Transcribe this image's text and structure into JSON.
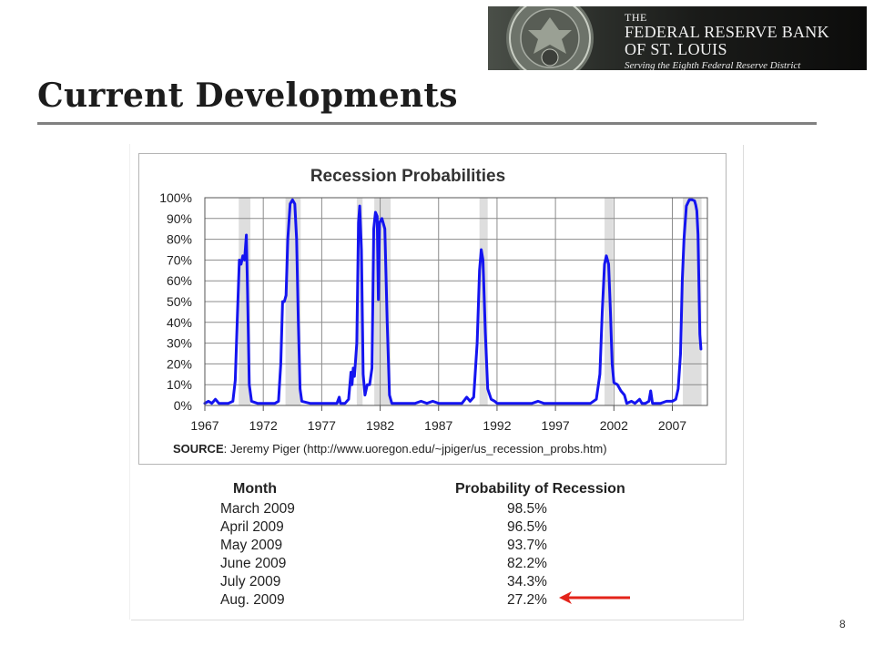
{
  "header": {
    "logo": {
      "line1": "THE",
      "line2": "FEDERAL RESERVE BANK",
      "line3": "OF ST. LOUIS",
      "tagline": "Serving the Eighth Federal Reserve District"
    },
    "page_title": "Current Developments"
  },
  "chart_data": {
    "type": "line",
    "title": "Recession Probabilities",
    "xlabel": "",
    "ylabel": "",
    "source_label": "SOURCE",
    "source_text": ": Jeremy Piger (http://www.uoregon.edu/~jpiger/us_recession_probs.htm)",
    "x_ticks": [
      "1967",
      "1972",
      "1977",
      "1982",
      "1987",
      "1992",
      "1997",
      "2002",
      "2007"
    ],
    "y_ticks": [
      "0%",
      "10%",
      "20%",
      "30%",
      "40%",
      "50%",
      "60%",
      "70%",
      "80%",
      "90%",
      "100%"
    ],
    "xlim": [
      1967,
      2010
    ],
    "ylim": [
      0,
      100
    ],
    "grid": true,
    "recession_shading": [
      [
        1969.9,
        1970.9
      ],
      [
        1973.9,
        1975.2
      ],
      [
        1980.0,
        1980.5
      ],
      [
        1981.5,
        1982.9
      ],
      [
        1990.5,
        1991.2
      ],
      [
        2001.2,
        2001.9
      ],
      [
        2007.9,
        2009.5
      ]
    ],
    "series": [
      {
        "color": "#1414f0",
        "points": [
          [
            1967.0,
            1
          ],
          [
            1967.3,
            2
          ],
          [
            1967.6,
            1
          ],
          [
            1967.9,
            3
          ],
          [
            1968.2,
            1
          ],
          [
            1968.6,
            1
          ],
          [
            1969.0,
            1
          ],
          [
            1969.4,
            2
          ],
          [
            1969.6,
            12
          ],
          [
            1969.8,
            45
          ],
          [
            1969.95,
            70
          ],
          [
            1970.1,
            68
          ],
          [
            1970.25,
            72
          ],
          [
            1970.4,
            70
          ],
          [
            1970.55,
            82
          ],
          [
            1970.65,
            55
          ],
          [
            1970.8,
            10
          ],
          [
            1971.0,
            2
          ],
          [
            1971.5,
            1
          ],
          [
            1972.0,
            1
          ],
          [
            1972.5,
            1
          ],
          [
            1973.0,
            1
          ],
          [
            1973.3,
            2
          ],
          [
            1973.5,
            20
          ],
          [
            1973.65,
            50
          ],
          [
            1973.8,
            50
          ],
          [
            1973.95,
            53
          ],
          [
            1974.1,
            80
          ],
          [
            1974.3,
            97
          ],
          [
            1974.5,
            99
          ],
          [
            1974.7,
            97
          ],
          [
            1974.85,
            80
          ],
          [
            1975.0,
            40
          ],
          [
            1975.15,
            8
          ],
          [
            1975.3,
            2
          ],
          [
            1976.0,
            1
          ],
          [
            1977.0,
            1
          ],
          [
            1978.0,
            1
          ],
          [
            1978.3,
            1
          ],
          [
            1978.5,
            4
          ],
          [
            1978.6,
            1
          ],
          [
            1979.0,
            1
          ],
          [
            1979.3,
            3
          ],
          [
            1979.5,
            16
          ],
          [
            1979.6,
            10
          ],
          [
            1979.7,
            18
          ],
          [
            1979.8,
            14
          ],
          [
            1980.0,
            30
          ],
          [
            1980.15,
            88
          ],
          [
            1980.25,
            96
          ],
          [
            1980.4,
            75
          ],
          [
            1980.55,
            15
          ],
          [
            1980.7,
            5
          ],
          [
            1980.9,
            10
          ],
          [
            1981.1,
            10
          ],
          [
            1981.3,
            18
          ],
          [
            1981.45,
            85
          ],
          [
            1981.6,
            93
          ],
          [
            1981.75,
            91
          ],
          [
            1981.85,
            51
          ],
          [
            1981.95,
            88
          ],
          [
            1982.15,
            90
          ],
          [
            1982.4,
            85
          ],
          [
            1982.6,
            40
          ],
          [
            1982.8,
            5
          ],
          [
            1983.0,
            1
          ],
          [
            1984.0,
            1
          ],
          [
            1985.0,
            1
          ],
          [
            1985.5,
            2
          ],
          [
            1986.0,
            1
          ],
          [
            1986.5,
            2
          ],
          [
            1987.0,
            1
          ],
          [
            1987.5,
            1
          ],
          [
            1988.0,
            1
          ],
          [
            1988.5,
            1
          ],
          [
            1989.0,
            1
          ],
          [
            1989.4,
            4
          ],
          [
            1989.7,
            2
          ],
          [
            1990.0,
            4
          ],
          [
            1990.3,
            30
          ],
          [
            1990.5,
            65
          ],
          [
            1990.65,
            75
          ],
          [
            1990.8,
            70
          ],
          [
            1991.0,
            35
          ],
          [
            1991.2,
            8
          ],
          [
            1991.5,
            3
          ],
          [
            1991.8,
            2
          ],
          [
            1992.0,
            1
          ],
          [
            1993.0,
            1
          ],
          [
            1994.0,
            1
          ],
          [
            1995.0,
            1
          ],
          [
            1995.5,
            2
          ],
          [
            1996.0,
            1
          ],
          [
            1997.0,
            1
          ],
          [
            1998.0,
            1
          ],
          [
            1999.0,
            1
          ],
          [
            1999.5,
            1
          ],
          [
            2000.0,
            1
          ],
          [
            2000.5,
            3
          ],
          [
            2000.8,
            15
          ],
          [
            2001.0,
            45
          ],
          [
            2001.2,
            68
          ],
          [
            2001.35,
            72
          ],
          [
            2001.55,
            68
          ],
          [
            2001.7,
            45
          ],
          [
            2001.85,
            20
          ],
          [
            2002.0,
            11
          ],
          [
            2002.3,
            10
          ],
          [
            2002.6,
            7
          ],
          [
            2002.9,
            5
          ],
          [
            2003.1,
            1
          ],
          [
            2003.5,
            2
          ],
          [
            2003.8,
            1
          ],
          [
            2004.2,
            3
          ],
          [
            2004.4,
            1
          ],
          [
            2004.7,
            1
          ],
          [
            2005.0,
            2
          ],
          [
            2005.15,
            7
          ],
          [
            2005.3,
            1
          ],
          [
            2005.6,
            1
          ],
          [
            2006.0,
            1
          ],
          [
            2006.5,
            2
          ],
          [
            2007.0,
            2
          ],
          [
            2007.3,
            3
          ],
          [
            2007.5,
            8
          ],
          [
            2007.7,
            25
          ],
          [
            2007.85,
            60
          ],
          [
            2008.0,
            80
          ],
          [
            2008.2,
            96
          ],
          [
            2008.45,
            99
          ],
          [
            2008.7,
            99
          ],
          [
            2008.9,
            98.5
          ],
          [
            2009.0,
            96.5
          ],
          [
            2009.1,
            93.7
          ],
          [
            2009.2,
            82.2
          ],
          [
            2009.35,
            34.3
          ],
          [
            2009.45,
            27.2
          ]
        ]
      }
    ]
  },
  "table": {
    "headers": {
      "month": "Month",
      "prob": "Probability of Recession"
    },
    "rows": [
      {
        "month": "March 2009",
        "prob": "98.5%"
      },
      {
        "month": "April 2009",
        "prob": "96.5%"
      },
      {
        "month": "May 2009",
        "prob": "93.7%"
      },
      {
        "month": "June 2009",
        "prob": "82.2%"
      },
      {
        "month": "July 2009",
        "prob": "34.3%"
      },
      {
        "month": "Aug. 2009",
        "prob": "27.2%"
      }
    ]
  },
  "colors": {
    "line": "#1414f0",
    "shading": "#dedede",
    "arrow": "#e3231a",
    "rule": "#808080"
  },
  "page_number": "8"
}
